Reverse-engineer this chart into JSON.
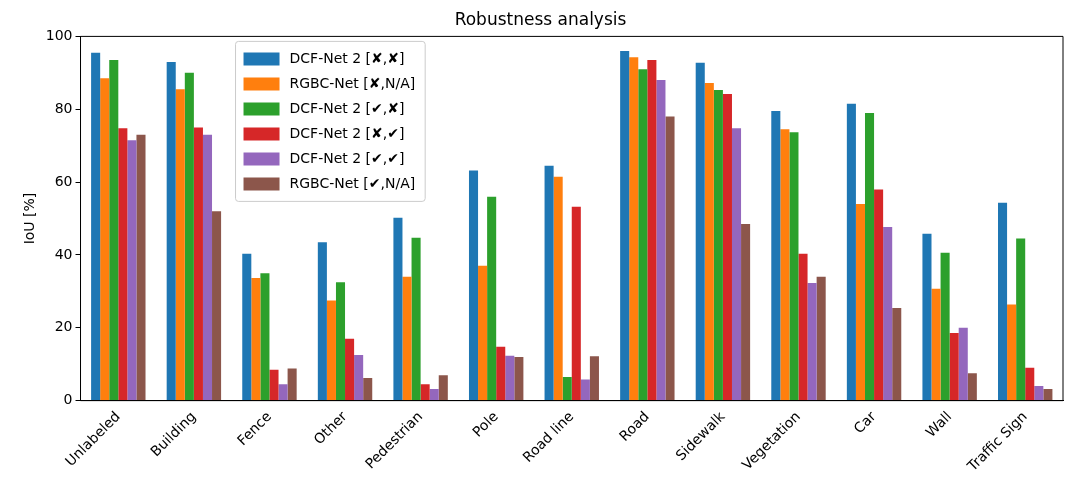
{
  "chart_data": {
    "type": "bar",
    "title": "Robustness analysis",
    "ylabel": "IoU [%]",
    "categories": [
      "Unlabeled",
      "Building",
      "Fence",
      "Other",
      "Pedestrian",
      "Pole",
      "Road line",
      "Road",
      "Sidewalk",
      "Vegetation",
      "Car",
      "Wall",
      "Traffic Sign"
    ],
    "series": [
      {
        "name": "DCF-Net 2 [✘,✘]",
        "color": "#1f77b4",
        "values": [
          95.5,
          93,
          40.3,
          43.5,
          50.2,
          63.2,
          64.5,
          96,
          92.8,
          79.5,
          81.5,
          45.8,
          54.3
        ]
      },
      {
        "name": "RGBC-Net [✘,N/A]",
        "color": "#ff7f0e",
        "values": [
          88.5,
          85.5,
          33.7,
          27.5,
          34,
          37,
          61.5,
          94.3,
          87.2,
          74.5,
          54,
          30.7,
          26.4
        ]
      },
      {
        "name": "DCF-Net 2 [✔,✘]",
        "color": "#2ca02c",
        "values": [
          93.5,
          90,
          35,
          32.5,
          44.7,
          56,
          6.5,
          91,
          85.3,
          73.7,
          79,
          40.6,
          44.5
        ]
      },
      {
        "name": "DCF-Net 2 [✘,✔]",
        "color": "#d62728",
        "values": [
          74.8,
          75,
          8.5,
          17,
          4.5,
          14.8,
          53.2,
          93.5,
          84.2,
          40.3,
          58,
          18.6,
          9
        ]
      },
      {
        "name": "DCF-Net 2 [✔,✔]",
        "color": "#9467bd",
        "values": [
          71.5,
          73,
          4.5,
          12.5,
          3.2,
          12.3,
          5.8,
          88,
          74.8,
          32.3,
          47.7,
          20,
          4
        ]
      },
      {
        "name": "RGBC-Net [✔,N/A]",
        "color": "#8c564b",
        "values": [
          73,
          52,
          8.8,
          6.2,
          7,
          12,
          12.2,
          78,
          48.5,
          34,
          25.4,
          7.5,
          3.2
        ]
      }
    ],
    "ylim": [
      0,
      100
    ],
    "yticks": [
      0,
      20,
      40,
      60,
      80,
      100
    ],
    "grid": false,
    "legend": "top left"
  }
}
